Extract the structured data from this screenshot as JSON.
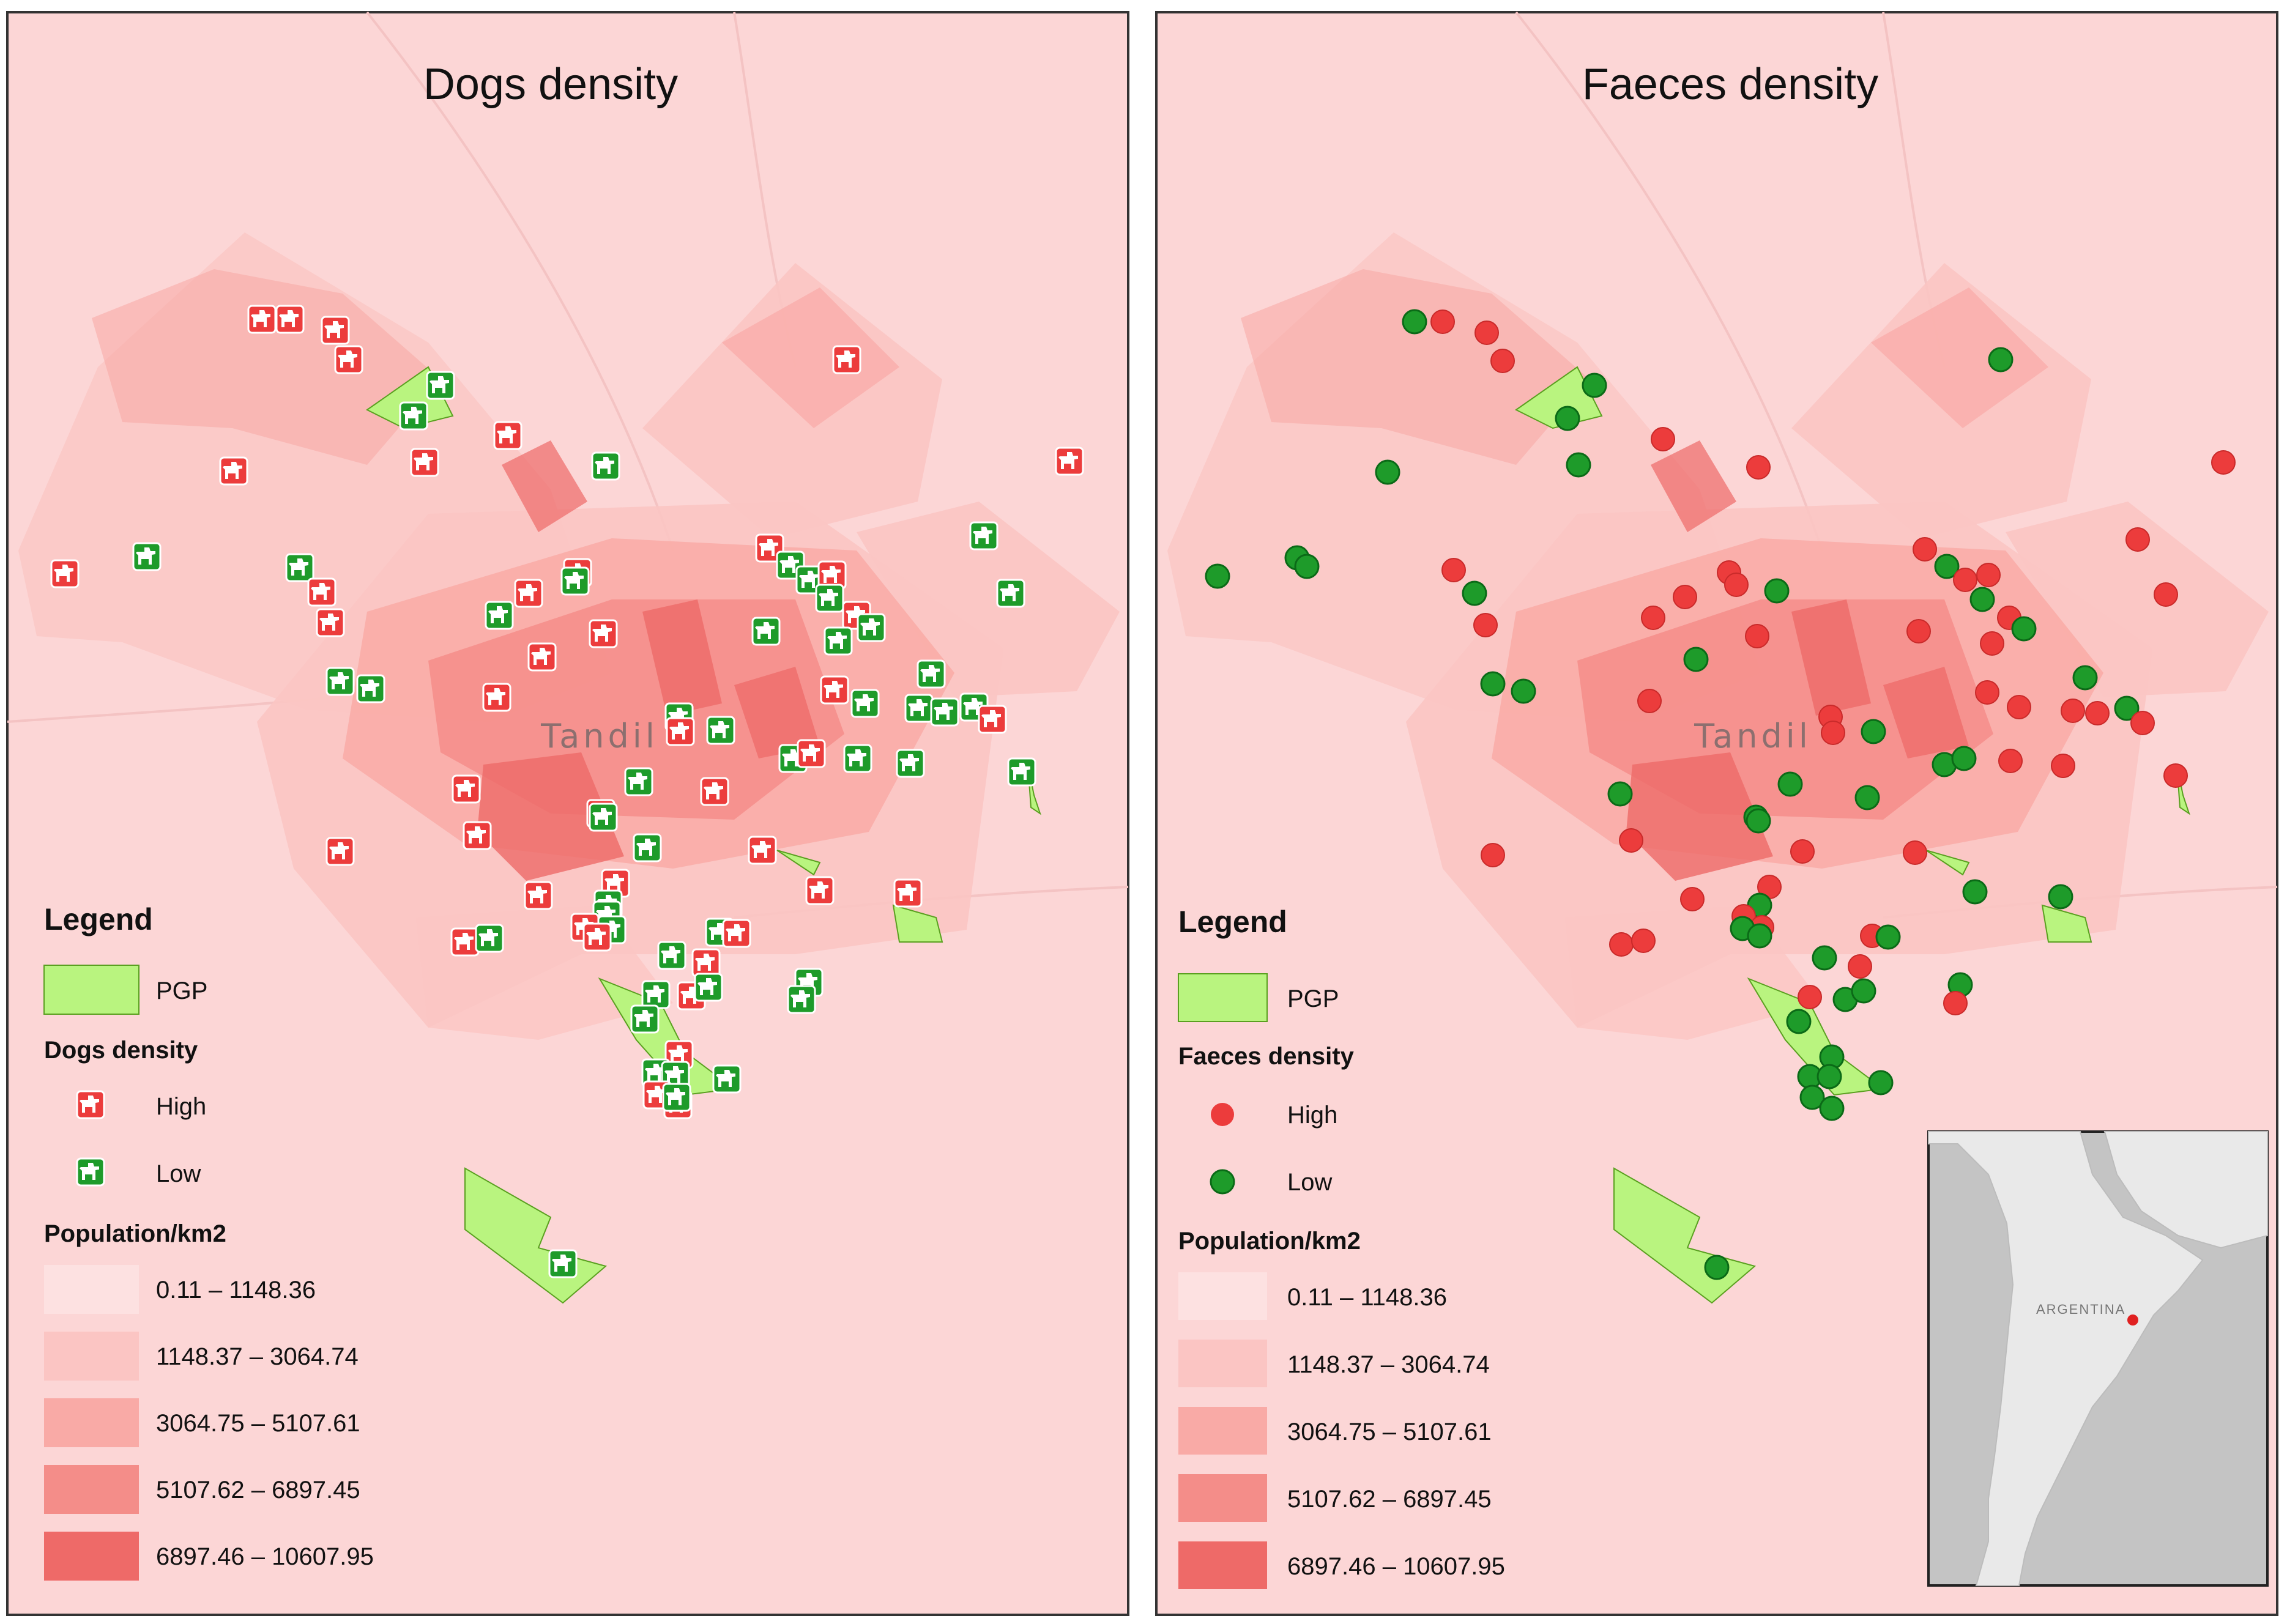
{
  "panels": [
    {
      "id": "dogs",
      "title": "Dogs density",
      "city": "Tandil",
      "legend": {
        "heading": "Legend",
        "pgp_label": "PGP",
        "density_title": "Dogs density",
        "high_label": "High",
        "low_label": "Low",
        "population_title": "Population/km2",
        "classes": [
          "0.11 – 1148.36",
          "1148.37 – 3064.74",
          "3064.75 – 5107.61",
          "5107.62 – 6897.45",
          "6897.46 – 10607.95"
        ]
      }
    },
    {
      "id": "faeces",
      "title": "Faeces density",
      "city": "Tandil",
      "legend": {
        "heading": "Legend",
        "pgp_label": "PGP",
        "density_title": "Faeces density",
        "high_label": "High",
        "low_label": "Low",
        "population_title": "Population/km2",
        "classes": [
          "0.11 – 1148.36",
          "1148.37 – 3064.74",
          "3064.75 – 5107.61",
          "5107.62 – 6897.45",
          "6897.46 – 10607.95"
        ]
      },
      "inset": {
        "label": "ARGENTINA"
      }
    }
  ],
  "colors": {
    "background": "#fcd6d6",
    "class_fills": [
      "#fde1e1",
      "#fbc5c3",
      "#f9aaa6",
      "#f48d89",
      "#ee6a68"
    ],
    "pgp": "#b9f47f",
    "high": "#ec3c3c",
    "low": "#1e9b2a",
    "inset_land": "#e9e9e9",
    "inset_sea": "#c4c4c4"
  },
  "icons": {
    "dog": "dog-icon",
    "dot": "circle-marker-icon"
  }
}
